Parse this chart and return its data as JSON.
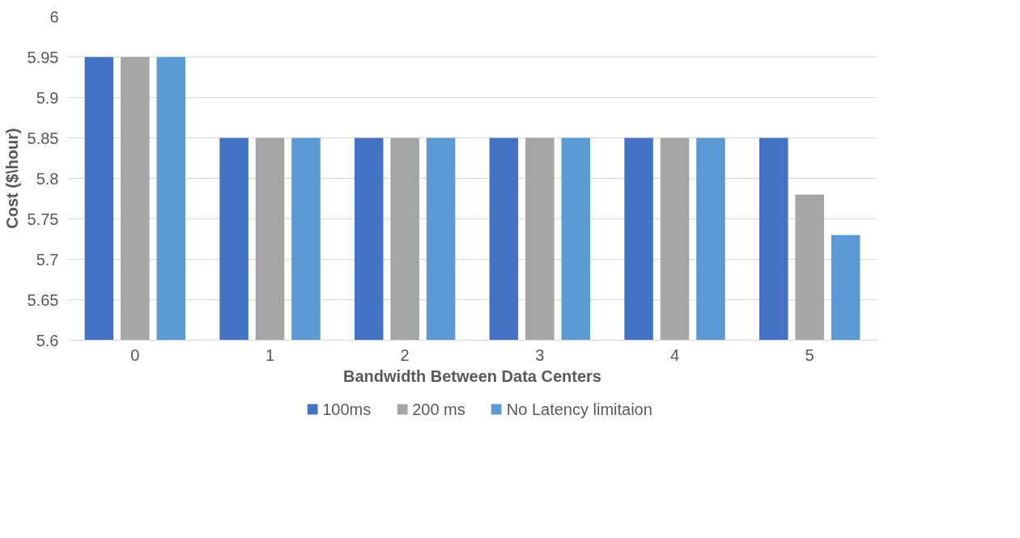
{
  "chart_data": {
    "type": "bar",
    "xlabel": "Bandwidth Between Data Centers",
    "ylabel": "Cost ($\\hour)",
    "categories": [
      "0",
      "1",
      "2",
      "3",
      "4",
      "5"
    ],
    "series": [
      {
        "name": "100ms",
        "color": "#4472c4",
        "values": [
          5.95,
          5.85,
          5.85,
          5.85,
          5.85,
          5.85
        ]
      },
      {
        "name": "200 ms",
        "color": "#a5a5a5",
        "values": [
          5.95,
          5.85,
          5.85,
          5.85,
          5.85,
          5.78
        ]
      },
      {
        "name": "No Latency limitaion",
        "color": "#5b9bd5",
        "values": [
          5.95,
          5.85,
          5.85,
          5.85,
          5.85,
          5.73
        ]
      }
    ],
    "ylim": [
      5.6,
      6
    ],
    "yticks": [
      5.6,
      5.65,
      5.7,
      5.75,
      5.8,
      5.85,
      5.9,
      5.95,
      6
    ],
    "grid": "y",
    "legend": "bottom"
  }
}
